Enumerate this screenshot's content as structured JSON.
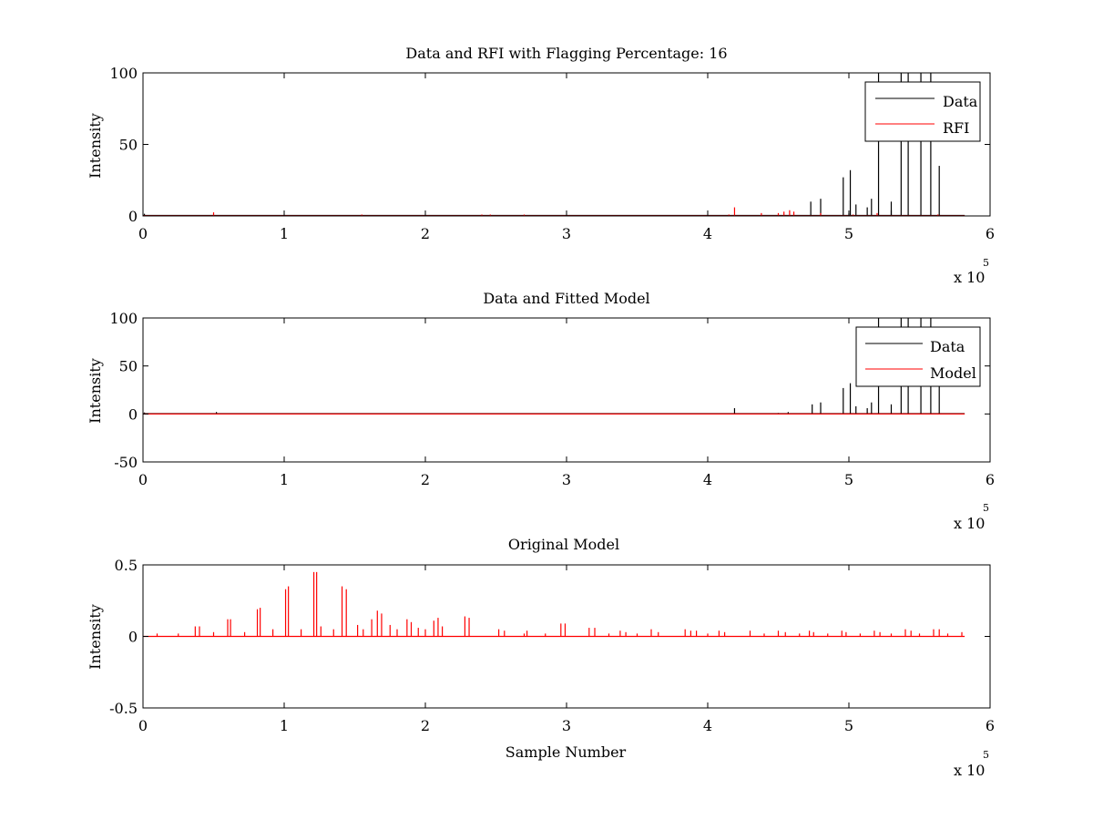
{
  "colors": {
    "data": "#000000",
    "red": "#ff0000",
    "axes": "#000000",
    "background": "#ffffff"
  },
  "chart_data": [
    {
      "type": "line",
      "title": "Data and RFI with Flagging Percentage: 16",
      "xlabel": "",
      "ylabel": "Intensity",
      "xlim": [
        0,
        600000
      ],
      "ylim": [
        0,
        100
      ],
      "xticks": [
        "0",
        "1",
        "2",
        "3",
        "4",
        "5",
        "6"
      ],
      "yticks": [
        "0",
        "50",
        "100"
      ],
      "x_exponent": {
        "base": "x 10",
        "power": "5"
      },
      "legend": [
        "Data",
        "RFI"
      ],
      "legend_position": "top-right",
      "x_end": 582000,
      "series": [
        {
          "name": "Data",
          "color": "#000000",
          "baseline": 0.3,
          "spikes": [
            [
              1000,
              1.5
            ],
            [
              500000,
              2
            ],
            [
              480000,
              12
            ],
            [
              473000,
              10
            ],
            [
              496000,
              27
            ],
            [
              501000,
              32
            ],
            [
              505000,
              8
            ],
            [
              513000,
              6
            ],
            [
              516000,
              12
            ],
            [
              521000,
              100
            ],
            [
              530000,
              10
            ],
            [
              537000,
              100
            ],
            [
              542000,
              100
            ],
            [
              551000,
              100
            ],
            [
              558000,
              100
            ],
            [
              564000,
              35
            ],
            [
              530000,
              4
            ]
          ]
        },
        {
          "name": "RFI",
          "color": "#ff0000",
          "baseline": 0.1,
          "spikes": [
            [
              50000,
              2.5
            ],
            [
              155000,
              1
            ],
            [
              240000,
              1
            ],
            [
              246000,
              1
            ],
            [
              270000,
              1
            ],
            [
              419000,
              6
            ],
            [
              415000,
              1
            ],
            [
              438000,
              2
            ],
            [
              450000,
              2
            ],
            [
              454000,
              3
            ],
            [
              458000,
              4
            ],
            [
              461000,
              3
            ],
            [
              480000,
              2
            ],
            [
              503000,
              1
            ],
            [
              520000,
              2
            ],
            [
              563000,
              1
            ]
          ]
        }
      ]
    },
    {
      "type": "line",
      "title": "Data and Fitted Model",
      "xlabel": "",
      "ylabel": "Intensity",
      "xlim": [
        0,
        600000
      ],
      "ylim": [
        -50,
        100
      ],
      "xticks": [
        "0",
        "1",
        "2",
        "3",
        "4",
        "5",
        "6"
      ],
      "yticks": [
        "-50",
        "0",
        "50",
        "100"
      ],
      "x_exponent": {
        "base": "x 10",
        "power": "5"
      },
      "legend": [
        "Data",
        "Model"
      ],
      "legend_position": "top-right",
      "x_end": 582000,
      "series": [
        {
          "name": "Data",
          "color": "#000000",
          "baseline": 0.3,
          "spikes": [
            [
              1000,
              1.5
            ],
            [
              52000,
              2
            ],
            [
              419000,
              6
            ],
            [
              474000,
              10
            ],
            [
              480000,
              12
            ],
            [
              496000,
              27
            ],
            [
              501000,
              32
            ],
            [
              505000,
              8
            ],
            [
              513000,
              6
            ],
            [
              516000,
              12
            ],
            [
              521000,
              100
            ],
            [
              530000,
              10
            ],
            [
              537000,
              100
            ],
            [
              542000,
              100
            ],
            [
              551000,
              100
            ],
            [
              558000,
              100
            ],
            [
              564000,
              35
            ],
            [
              457000,
              2
            ],
            [
              450000,
              1
            ]
          ]
        },
        {
          "name": "Model",
          "color": "#ff0000",
          "baseline": 0,
          "spikes": []
        }
      ]
    },
    {
      "type": "line",
      "title": "Original Model",
      "xlabel": "Sample Number",
      "ylabel": "Intensity",
      "xlim": [
        0,
        600000
      ],
      "ylim": [
        -0.5,
        0.5
      ],
      "xticks": [
        "0",
        "1",
        "2",
        "3",
        "4",
        "5",
        "6"
      ],
      "yticks": [
        "-0.5",
        "0",
        "0.5"
      ],
      "x_exponent": {
        "base": "x 10",
        "power": "5"
      },
      "legend": [],
      "legend_position": "none",
      "x_end": 582000,
      "series": [
        {
          "name": "",
          "color": "#ff0000",
          "baseline": 0,
          "spikes": [
            [
              37000,
              0.07
            ],
            [
              40000,
              0.07
            ],
            [
              60000,
              0.12
            ],
            [
              62000,
              0.12
            ],
            [
              81000,
              0.19
            ],
            [
              83000,
              0.2
            ],
            [
              101000,
              0.33
            ],
            [
              103000,
              0.35
            ],
            [
              121000,
              0.45
            ],
            [
              123000,
              0.45
            ],
            [
              141000,
              0.35
            ],
            [
              144000,
              0.33
            ],
            [
              126000,
              0.07
            ],
            [
              152000,
              0.08
            ],
            [
              162000,
              0.12
            ],
            [
              166000,
              0.18
            ],
            [
              169000,
              0.16
            ],
            [
              175000,
              0.08
            ],
            [
              187000,
              0.12
            ],
            [
              190000,
              0.1
            ],
            [
              206000,
              0.11
            ],
            [
              209000,
              0.13
            ],
            [
              212000,
              0.07
            ],
            [
              228000,
              0.14
            ],
            [
              231000,
              0.13
            ],
            [
              195000,
              0.06
            ],
            [
              200000,
              0.05
            ],
            [
              180000,
              0.05
            ],
            [
              156000,
              0.05
            ],
            [
              135000,
              0.05
            ],
            [
              112000,
              0.05
            ],
            [
              92000,
              0.05
            ],
            [
              72000,
              0.03
            ],
            [
              50000,
              0.03
            ],
            [
              252000,
              0.05
            ],
            [
              256000,
              0.04
            ],
            [
              272000,
              0.04
            ],
            [
              296000,
              0.09
            ],
            [
              299000,
              0.09
            ],
            [
              316000,
              0.06
            ],
            [
              320000,
              0.06
            ],
            [
              338000,
              0.04
            ],
            [
              342000,
              0.03
            ],
            [
              360000,
              0.05
            ],
            [
              365000,
              0.03
            ],
            [
              384000,
              0.05
            ],
            [
              388000,
              0.04
            ],
            [
              392000,
              0.04
            ],
            [
              408000,
              0.04
            ],
            [
              412000,
              0.03
            ],
            [
              430000,
              0.04
            ],
            [
              450000,
              0.04
            ],
            [
              455000,
              0.03
            ],
            [
              472000,
              0.04
            ],
            [
              475000,
              0.03
            ],
            [
              495000,
              0.04
            ],
            [
              498000,
              0.03
            ],
            [
              518000,
              0.04
            ],
            [
              522000,
              0.03
            ],
            [
              540000,
              0.05
            ],
            [
              544000,
              0.04
            ],
            [
              560000,
              0.05
            ],
            [
              564000,
              0.05
            ],
            [
              580000,
              0.03
            ],
            [
              10000,
              0.02
            ],
            [
              25000,
              0.02
            ],
            [
              270000,
              0.02
            ],
            [
              285000,
              0.02
            ],
            [
              330000,
              0.02
            ],
            [
              350000,
              0.02
            ],
            [
              400000,
              0.02
            ],
            [
              440000,
              0.02
            ],
            [
              465000,
              0.02
            ],
            [
              485000,
              0.02
            ],
            [
              508000,
              0.02
            ],
            [
              530000,
              0.02
            ],
            [
              550000,
              0.02
            ],
            [
              570000,
              0.02
            ]
          ]
        }
      ]
    }
  ]
}
